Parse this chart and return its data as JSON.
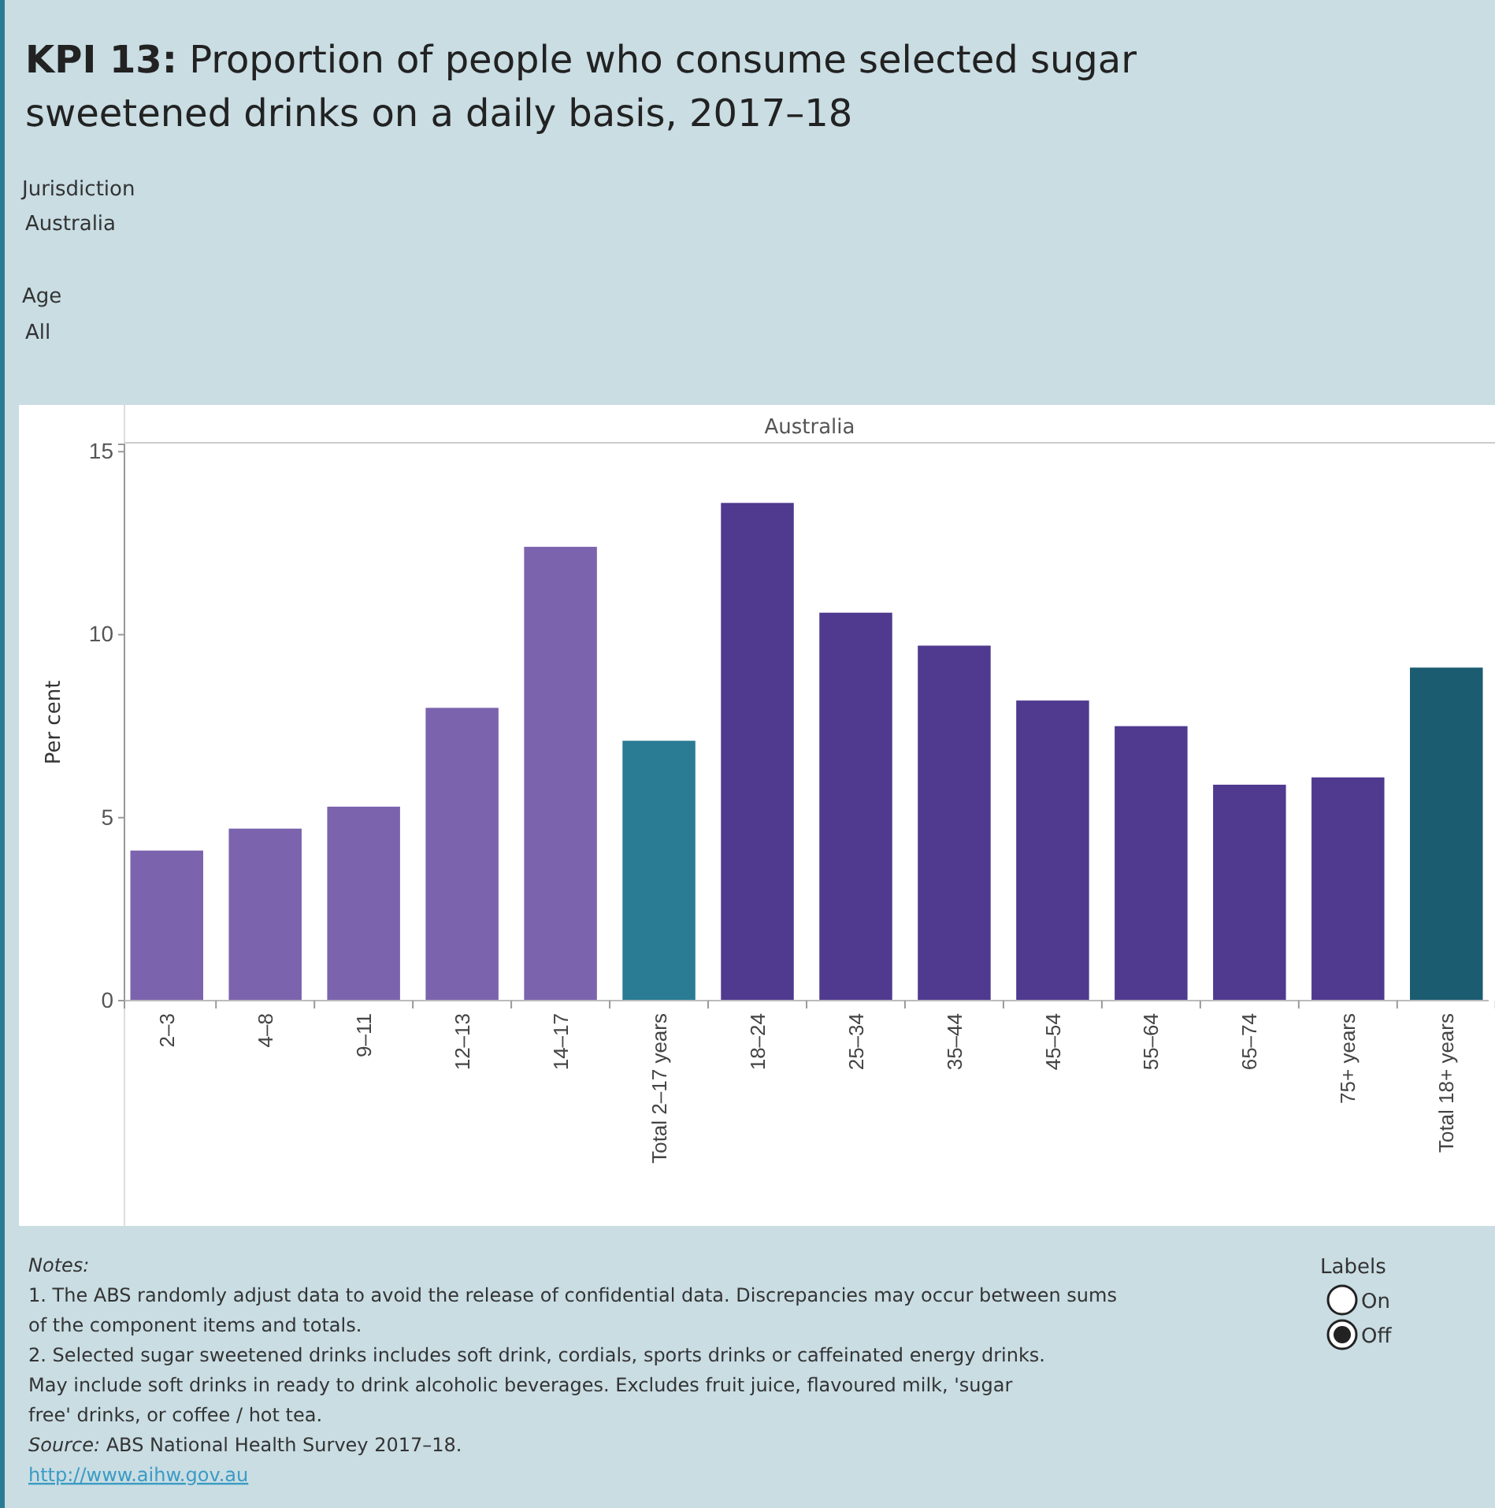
{
  "chart_data": {
    "type": "bar",
    "title": "KPI 13: Proportion of people who consume selected sugar sweetened drinks on a daily basis, 2017–18",
    "ylabel": "Per cent",
    "categories": [
      "2–3",
      "4–8",
      "9–11",
      "12–13",
      "14–17",
      "Total 2–17 years",
      "18–24",
      "25–34",
      "35–44",
      "45–54",
      "55–64",
      "65–74",
      "75+ years",
      "Total 18+ years"
    ],
    "values": [
      4.1,
      4.7,
      5.3,
      8.0,
      12.4,
      7.1,
      13.6,
      10.6,
      9.7,
      8.2,
      7.5,
      5.9,
      6.1,
      9.1
    ],
    "colors": [
      "#7b63ae",
      "#7b63ae",
      "#7b63ae",
      "#7b63ae",
      "#7b63ae",
      "#2a7b94",
      "#4f3a8f",
      "#4f3a8f",
      "#4f3a8f",
      "#4f3a8f",
      "#4f3a8f",
      "#4f3a8f",
      "#4f3a8f",
      "#1b5c71"
    ],
    "ylim": [
      0,
      15.2
    ],
    "yticks": [
      0,
      5,
      10,
      15
    ],
    "grid": false,
    "annotations": [
      "Jurisdiction",
      "Australia",
      "Age",
      "All",
      "Australia",
      "Notes:",
      "1. The ABS randomly adjust data to avoid the release of confidential data. Discrepancies may occur between sums of the component items and totals.",
      "2. Selected sugar sweetened drinks includes soft drink, cordials, sports drinks or caffeinated energy drinks. May include soft drinks in ready to drink alcoholic beverages. Excludes fruit juice, flavoured milk, 'sugar free' drinks, or coffee / hot tea.",
      "Source: ABS National Health Survey 2017–18.",
      "http://www.aihw.gov.au",
      "Labels",
      "On",
      "Off"
    ]
  }
}
